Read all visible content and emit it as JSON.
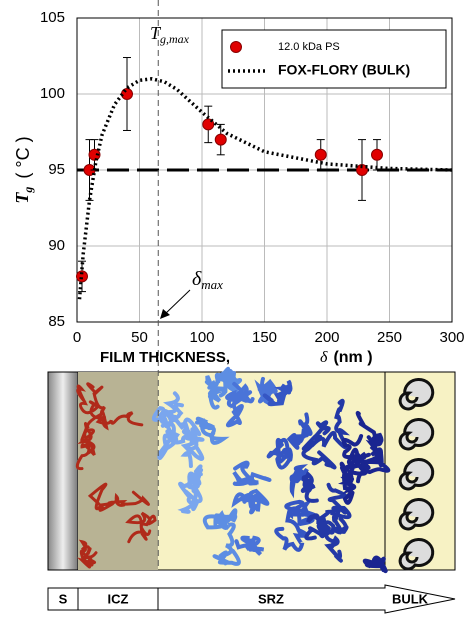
{
  "chart_data": {
    "type": "scatter",
    "y_label": {
      "main": "T",
      "sub": "g",
      "unit": "( °C )"
    },
    "x_label": {
      "text": "FILM  THICKNESS,",
      "symbol": "δ",
      "unit": "(nm )"
    },
    "annotation_peak": {
      "main": "T",
      "sub": "g,max"
    },
    "annotation_delta": {
      "main": "δ",
      "sub": "max"
    },
    "xlim": [
      0,
      300
    ],
    "xticks": [
      0,
      50,
      100,
      150,
      200,
      250,
      300
    ],
    "ylim": [
      85,
      105
    ],
    "yticks": [
      85,
      90,
      95,
      100,
      105
    ],
    "grid": true,
    "hline": 95,
    "vline": 65,
    "legend": "top-right",
    "series": [
      {
        "name": "12.0 kDa PS",
        "color": "#e00000",
        "style": "marker",
        "x": [
          4,
          10,
          14,
          40,
          105,
          115,
          195,
          228,
          240
        ],
        "values": [
          88,
          95,
          96,
          100,
          98,
          97,
          96,
          95,
          96
        ],
        "errors": [
          1,
          2,
          1,
          2.4,
          1.2,
          1,
          1,
          2,
          1
        ]
      },
      {
        "name": "FOX-FLORY (BULK)",
        "color": "#000000",
        "style": "dotted",
        "x": [
          2,
          5,
          10,
          15,
          20,
          30,
          40,
          50,
          60,
          70,
          80,
          100,
          120,
          150,
          200,
          250,
          300
        ],
        "values": [
          86.5,
          89.5,
          93,
          95.5,
          97.3,
          99.3,
          100.4,
          100.9,
          101,
          100.8,
          100.3,
          98.8,
          97.4,
          96.2,
          95.4,
          95.1,
          95
        ]
      }
    ]
  },
  "schematic": {
    "zones": [
      "S",
      "ICZ",
      "SRZ",
      "BULK"
    ]
  }
}
